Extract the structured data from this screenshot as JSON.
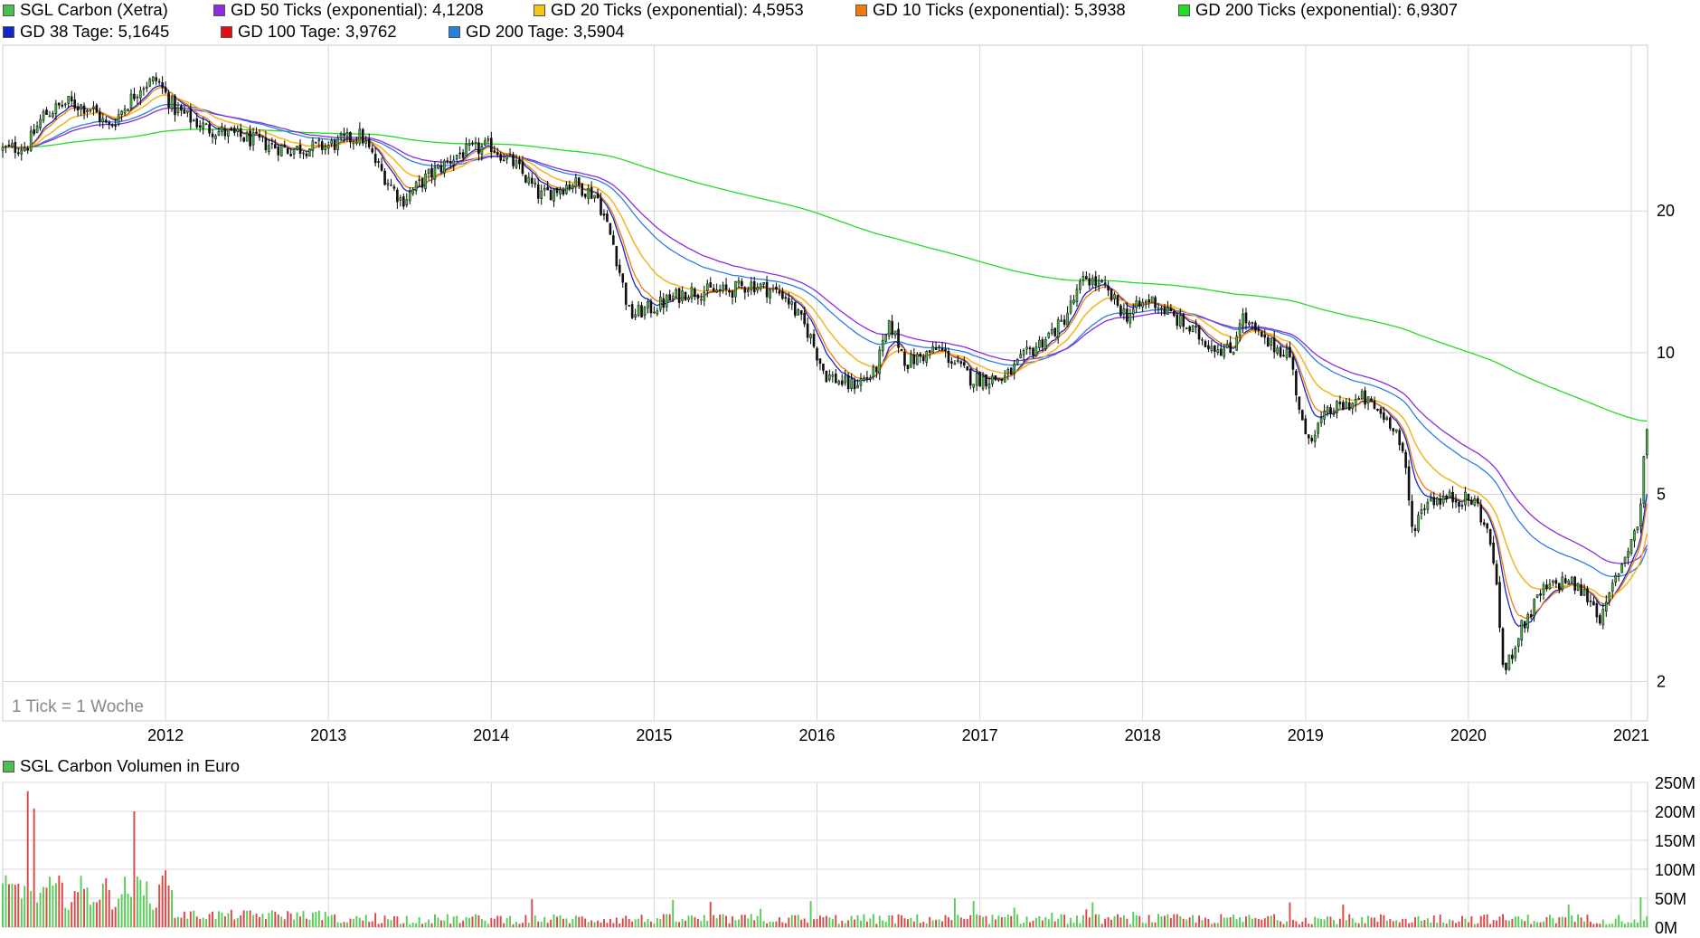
{
  "legend_top": [
    {
      "label": "SGL Carbon (Xetra)",
      "color": "#4dbd4d"
    },
    {
      "label": "GD 50 Ticks (exponential): 4,1208",
      "color": "#8b2be2"
    },
    {
      "label": "GD 20 Ticks (exponential): 4,5953",
      "color": "#f5c518"
    },
    {
      "label": "GD 10 Ticks (exponential): 5,3938",
      "color": "#f07a10"
    },
    {
      "label": "GD 200 Ticks (exponential): 6,9307",
      "color": "#22dd22"
    },
    {
      "label": "GD 38 Tage: 5,1645",
      "color": "#1028c8"
    },
    {
      "label": "GD 100 Tage: 3,9762",
      "color": "#e01010"
    },
    {
      "label": "GD 200 Tage: 3,5904",
      "color": "#2a7fe0"
    }
  ],
  "tick_note": "1 Tick = 1 Woche",
  "volume_legend": {
    "label": "SGL Carbon Volumen in Euro",
    "color": "#4dbd4d"
  },
  "chart_data": [
    {
      "type": "candlestick",
      "title": "SGL Carbon (Xetra)",
      "y_scale": "log",
      "ylim": [
        1.65,
        45
      ],
      "xlim": [
        2011.0,
        2021.1
      ],
      "x_ticks": [
        "2012",
        "2013",
        "2014",
        "2015",
        "2016",
        "2017",
        "2018",
        "2019",
        "2020",
        "2021"
      ],
      "y_ticks": [
        "2",
        "5",
        "10",
        "20"
      ],
      "price_anchors": [
        [
          2011.0,
          27
        ],
        [
          2011.15,
          27.5
        ],
        [
          2011.25,
          32
        ],
        [
          2011.4,
          34
        ],
        [
          2011.55,
          33
        ],
        [
          2011.65,
          30
        ],
        [
          2011.85,
          37
        ],
        [
          2011.95,
          38
        ],
        [
          2012.05,
          33
        ],
        [
          2012.25,
          30
        ],
        [
          2012.5,
          28.5
        ],
        [
          2012.75,
          27
        ],
        [
          2013.0,
          27.5
        ],
        [
          2013.2,
          29
        ],
        [
          2013.3,
          25
        ],
        [
          2013.45,
          21
        ],
        [
          2013.6,
          23.5
        ],
        [
          2013.8,
          26.5
        ],
        [
          2014.0,
          27.5
        ],
        [
          2014.15,
          25
        ],
        [
          2014.3,
          21.5
        ],
        [
          2014.5,
          23
        ],
        [
          2014.65,
          21.5
        ],
        [
          2014.75,
          17
        ],
        [
          2014.85,
          12
        ],
        [
          2015.0,
          12.5
        ],
        [
          2015.2,
          13.5
        ],
        [
          2015.45,
          13.5
        ],
        [
          2015.6,
          14
        ],
        [
          2015.8,
          13.3
        ],
        [
          2015.95,
          11
        ],
        [
          2016.05,
          9
        ],
        [
          2016.2,
          8.5
        ],
        [
          2016.35,
          9
        ],
        [
          2016.45,
          11.5
        ],
        [
          2016.55,
          9.5
        ],
        [
          2016.75,
          10.2
        ],
        [
          2016.95,
          8.8
        ],
        [
          2017.15,
          8.8
        ],
        [
          2017.3,
          10
        ],
        [
          2017.5,
          11.5
        ],
        [
          2017.65,
          14.5
        ],
        [
          2017.75,
          13.8
        ],
        [
          2017.9,
          12
        ],
        [
          2018.05,
          13
        ],
        [
          2018.2,
          11.8
        ],
        [
          2018.4,
          10.5
        ],
        [
          2018.55,
          10
        ],
        [
          2018.6,
          12
        ],
        [
          2018.75,
          10.5
        ],
        [
          2018.9,
          10
        ],
        [
          2019.0,
          6.5
        ],
        [
          2019.15,
          7.5
        ],
        [
          2019.35,
          8
        ],
        [
          2019.55,
          7
        ],
        [
          2019.62,
          5.5
        ],
        [
          2019.65,
          4.2
        ],
        [
          2019.75,
          4.9
        ],
        [
          2019.95,
          4.9
        ],
        [
          2020.05,
          4.8
        ],
        [
          2020.15,
          3.8
        ],
        [
          2020.22,
          2.05
        ],
        [
          2020.3,
          2.5
        ],
        [
          2020.45,
          3.1
        ],
        [
          2020.6,
          3.3
        ],
        [
          2020.75,
          3.0
        ],
        [
          2020.82,
          2.7
        ],
        [
          2020.9,
          3.3
        ],
        [
          2021.0,
          4.0
        ],
        [
          2021.05,
          4.4
        ],
        [
          2021.08,
          6.2
        ],
        [
          2021.1,
          7.1
        ]
      ],
      "series": [
        {
          "name": "GD 50 Ticks (exponential)",
          "last": 4.1208
        },
        {
          "name": "GD 20 Ticks (exponential)",
          "last": 4.5953
        },
        {
          "name": "GD 10 Ticks (exponential)",
          "last": 5.3938
        },
        {
          "name": "GD 200 Ticks (exponential)",
          "last": 6.9307
        },
        {
          "name": "GD 38 Tage",
          "last": 5.1645
        },
        {
          "name": "GD 100 Tage",
          "last": 3.9762
        },
        {
          "name": "GD 200 Tage",
          "last": 3.5904
        }
      ],
      "colors": {
        "up_candle": "#44bb44",
        "down_candle": "#111111",
        "wick": "#000000",
        "gd50": "#8b2be2",
        "gd20": "#f5c518",
        "gd10": "#f07a10",
        "gd200t": "#22dd22",
        "gd38": "#1028c8",
        "gd100": "#e01010",
        "gd200": "#2a7fe0",
        "grid": "#d8d8d8"
      }
    },
    {
      "type": "bar",
      "title": "SGL Carbon Volumen in Euro",
      "ylim": [
        0,
        250
      ],
      "y_unit": "M",
      "y_ticks": [
        "0M",
        "50M",
        "100M",
        "150M",
        "200M",
        "250M"
      ],
      "notable_values": [
        {
          "x": 2011.15,
          "value": 235
        },
        {
          "x": 2011.2,
          "value": 205
        },
        {
          "x": 2011.8,
          "value": 200
        },
        {
          "x": 2012.0,
          "value": 98
        }
      ],
      "colors": {
        "up": "#55cc55",
        "down": "#dd4444"
      }
    }
  ]
}
